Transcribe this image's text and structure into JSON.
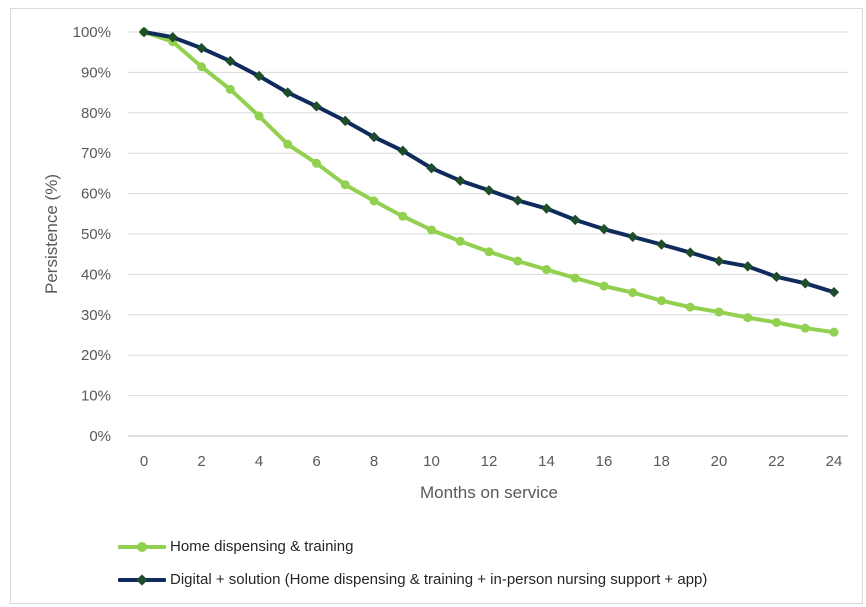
{
  "chart_data": {
    "type": "line",
    "title": "",
    "xlabel": "Months on service",
    "ylabel": "Persistence (%)",
    "xlim": [
      0,
      24
    ],
    "ylim": [
      0,
      100
    ],
    "x_ticks": [
      "0",
      "2",
      "4",
      "6",
      "8",
      "10",
      "12",
      "14",
      "16",
      "18",
      "20",
      "22",
      "24"
    ],
    "y_ticks": [
      "0%",
      "10%",
      "20%",
      "30%",
      "40%",
      "50%",
      "60%",
      "70%",
      "80%",
      "90%",
      "100%"
    ],
    "grid": "horizontal",
    "legend_position": "bottom",
    "x": [
      0,
      1,
      2,
      3,
      4,
      5,
      6,
      7,
      8,
      9,
      10,
      11,
      12,
      13,
      14,
      15,
      16,
      17,
      18,
      19,
      20,
      21,
      22,
      23,
      24
    ],
    "series": [
      {
        "name": "Home dispensing & training",
        "color": "#92d050",
        "marker": "circle",
        "values": [
          100,
          97.6,
          91.4,
          85.8,
          79.2,
          72.2,
          67.5,
          62.2,
          58.2,
          54.4,
          51.0,
          48.2,
          45.6,
          43.3,
          41.2,
          39.1,
          37.1,
          35.5,
          33.5,
          31.9,
          30.7,
          29.3,
          28.1,
          26.7,
          25.7
        ]
      },
      {
        "name": "Digital + solution (Home dispensing & training + in-person nursing support + app)",
        "color": "#0f2b5b",
        "marker": "diamond",
        "values": [
          100,
          98.7,
          96.0,
          92.8,
          89.1,
          85.0,
          81.6,
          78.0,
          74.0,
          70.6,
          66.3,
          63.2,
          60.8,
          58.3,
          56.3,
          53.5,
          51.2,
          49.3,
          47.4,
          45.4,
          43.3,
          42.0,
          39.4,
          37.8,
          35.6
        ]
      }
    ]
  }
}
